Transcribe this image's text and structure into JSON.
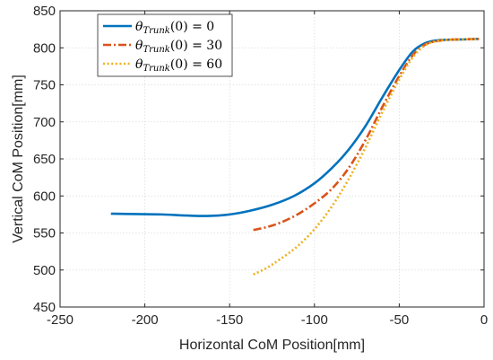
{
  "chart_data": {
    "type": "line",
    "title": "",
    "xlabel": "Horizontal CoM Position[mm]",
    "ylabel": "Vertical CoM Position[mm]",
    "xlim": [
      -250,
      0
    ],
    "ylim": [
      450,
      850
    ],
    "xticks": [
      -250,
      -200,
      -150,
      -100,
      -50,
      0
    ],
    "yticks": [
      450,
      500,
      550,
      600,
      650,
      700,
      750,
      800,
      850
    ],
    "xtick_labels": [
      "-250",
      "-200",
      "-150",
      "-100",
      "-50",
      "0"
    ],
    "ytick_labels": [
      "450",
      "500",
      "550",
      "600",
      "650",
      "700",
      "750",
      "800",
      "850"
    ],
    "grid": true,
    "legend_position": "top-left",
    "series": [
      {
        "name": "θTrunk(0) = 0",
        "legend": {
          "symbol": "θ",
          "subscript": "Trunk",
          "arg": "(0) = 0"
        },
        "color": "#0072BD",
        "dash": "solid",
        "points": [
          [
            -220,
            576
          ],
          [
            -205,
            575.5
          ],
          [
            -190,
            575
          ],
          [
            -175,
            573.5
          ],
          [
            -163,
            573
          ],
          [
            -150,
            575
          ],
          [
            -138,
            580
          ],
          [
            -125,
            588
          ],
          [
            -112,
            600
          ],
          [
            -100,
            617
          ],
          [
            -90,
            637
          ],
          [
            -80,
            662
          ],
          [
            -70,
            694
          ],
          [
            -60,
            733
          ],
          [
            -50,
            770
          ],
          [
            -42,
            795
          ],
          [
            -35,
            806
          ],
          [
            -28,
            810
          ],
          [
            -20,
            811
          ],
          [
            -10,
            811.5
          ],
          [
            -3,
            812
          ]
        ]
      },
      {
        "name": "θTrunk(0) = 30",
        "legend": {
          "symbol": "θ",
          "subscript": "Trunk",
          "arg": "(0) = 30"
        },
        "color": "#D95319",
        "dash": "dashdot",
        "points": [
          [
            -136,
            554
          ],
          [
            -128,
            558
          ],
          [
            -120,
            564
          ],
          [
            -110,
            575
          ],
          [
            -100,
            590
          ],
          [
            -90,
            609
          ],
          [
            -80,
            637
          ],
          [
            -70,
            675
          ],
          [
            -60,
            720
          ],
          [
            -50,
            762
          ],
          [
            -42,
            790
          ],
          [
            -35,
            804
          ],
          [
            -28,
            809
          ],
          [
            -20,
            811
          ],
          [
            -10,
            811.5
          ],
          [
            -3,
            812
          ]
        ]
      },
      {
        "name": "θTrunk(0) = 60",
        "legend": {
          "symbol": "θ",
          "subscript": "Trunk",
          "arg": "(0) = 60"
        },
        "color": "#EDB120",
        "dash": "dotted",
        "points": [
          [
            -136,
            494
          ],
          [
            -128,
            503
          ],
          [
            -120,
            515
          ],
          [
            -110,
            532
          ],
          [
            -100,
            555
          ],
          [
            -90,
            585
          ],
          [
            -80,
            622
          ],
          [
            -70,
            665
          ],
          [
            -60,
            713
          ],
          [
            -50,
            757
          ],
          [
            -42,
            787
          ],
          [
            -35,
            803
          ],
          [
            -28,
            809
          ],
          [
            -20,
            811
          ],
          [
            -10,
            811.5
          ],
          [
            -3,
            812
          ]
        ]
      }
    ]
  }
}
